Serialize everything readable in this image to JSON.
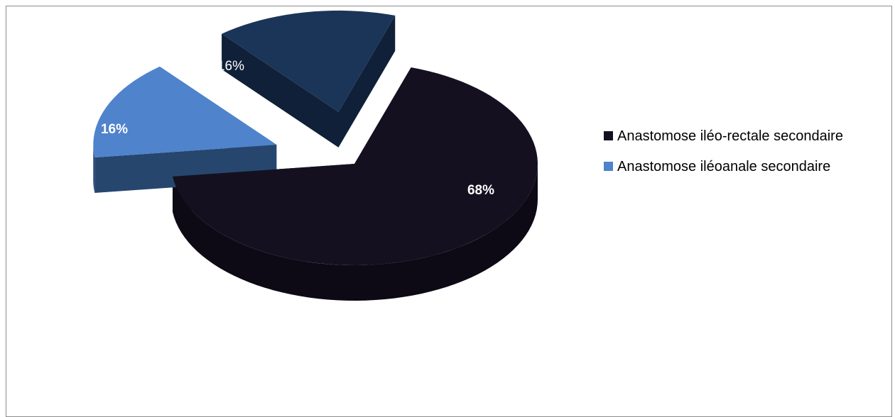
{
  "chart_data": {
    "type": "pie",
    "title": "",
    "slices": [
      {
        "label": "Anastomose iléo-rectale secondaire",
        "value": 68,
        "display": "68%",
        "color": "#15101f",
        "side_color": "#0d0a15",
        "exploded": false
      },
      {
        "label": "Anastomose iléoanale secondaire",
        "value": 16,
        "display": "16%",
        "color": "#4f83cc",
        "side_color": "#26466e",
        "exploded": true
      },
      {
        "label": "",
        "value": 16,
        "display": "16%",
        "color": "#1b3558",
        "side_color": "#0f2038",
        "exploded": true
      }
    ],
    "legend": {
      "position": "right",
      "entries": [
        {
          "label": "Anastomose iléo-rectale secondaire",
          "color": "#15101f"
        },
        {
          "label": "Anastomose iléoanale secondaire",
          "color": "#4f83cc"
        }
      ]
    }
  }
}
